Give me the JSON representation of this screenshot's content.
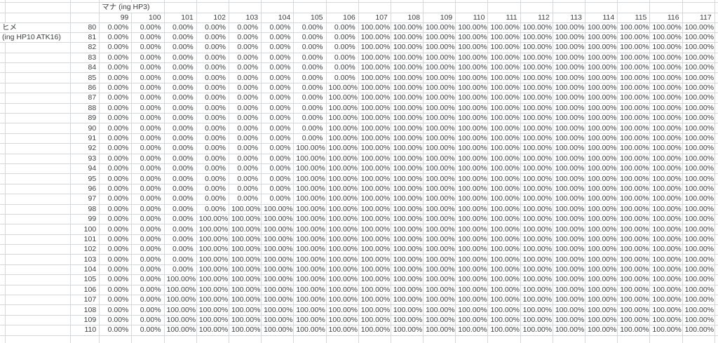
{
  "sheet": {
    "mana_header": "マナ (ing HP3)",
    "corner_label_line1": "ヒメ",
    "corner_label_line2": "(ing HP10 ATK16)",
    "col_headers": [
      "99",
      "100",
      "101",
      "102",
      "103",
      "104",
      "105",
      "106",
      "107",
      "108",
      "109",
      "110",
      "111",
      "112",
      "113",
      "114",
      "115",
      "116",
      "117"
    ],
    "colors": {
      "background": "#ffffff",
      "gridline": "#d5d8da",
      "text": "#3d3f40"
    },
    "rows": [
      {
        "label": "ヒメ",
        "row": "80",
        "values": [
          "0.00%",
          "0.00%",
          "0.00%",
          "0.00%",
          "0.00%",
          "0.00%",
          "0.00%",
          "0.00%",
          "100.00%",
          "100.00%",
          "100.00%",
          "100.00%",
          "100.00%",
          "100.00%",
          "100.00%",
          "100.00%",
          "100.00%",
          "100.00%",
          "100.00%"
        ]
      },
      {
        "label": "(ing HP10 ATK16)",
        "row": "81",
        "values": [
          "0.00%",
          "0.00%",
          "0.00%",
          "0.00%",
          "0.00%",
          "0.00%",
          "0.00%",
          "0.00%",
          "100.00%",
          "100.00%",
          "100.00%",
          "100.00%",
          "100.00%",
          "100.00%",
          "100.00%",
          "100.00%",
          "100.00%",
          "100.00%",
          "100.00%"
        ]
      },
      {
        "label": "",
        "row": "82",
        "values": [
          "0.00%",
          "0.00%",
          "0.00%",
          "0.00%",
          "0.00%",
          "0.00%",
          "0.00%",
          "0.00%",
          "100.00%",
          "100.00%",
          "100.00%",
          "100.00%",
          "100.00%",
          "100.00%",
          "100.00%",
          "100.00%",
          "100.00%",
          "100.00%",
          "100.00%"
        ]
      },
      {
        "label": "",
        "row": "83",
        "values": [
          "0.00%",
          "0.00%",
          "0.00%",
          "0.00%",
          "0.00%",
          "0.00%",
          "0.00%",
          "0.00%",
          "100.00%",
          "100.00%",
          "100.00%",
          "100.00%",
          "100.00%",
          "100.00%",
          "100.00%",
          "100.00%",
          "100.00%",
          "100.00%",
          "100.00%"
        ]
      },
      {
        "label": "",
        "row": "84",
        "values": [
          "0.00%",
          "0.00%",
          "0.00%",
          "0.00%",
          "0.00%",
          "0.00%",
          "0.00%",
          "0.00%",
          "100.00%",
          "100.00%",
          "100.00%",
          "100.00%",
          "100.00%",
          "100.00%",
          "100.00%",
          "100.00%",
          "100.00%",
          "100.00%",
          "100.00%"
        ]
      },
      {
        "label": "",
        "row": "85",
        "values": [
          "0.00%",
          "0.00%",
          "0.00%",
          "0.00%",
          "0.00%",
          "0.00%",
          "0.00%",
          "0.00%",
          "100.00%",
          "100.00%",
          "100.00%",
          "100.00%",
          "100.00%",
          "100.00%",
          "100.00%",
          "100.00%",
          "100.00%",
          "100.00%",
          "100.00%"
        ]
      },
      {
        "label": "",
        "row": "86",
        "values": [
          "0.00%",
          "0.00%",
          "0.00%",
          "0.00%",
          "0.00%",
          "0.00%",
          "0.00%",
          "100.00%",
          "100.00%",
          "100.00%",
          "100.00%",
          "100.00%",
          "100.00%",
          "100.00%",
          "100.00%",
          "100.00%",
          "100.00%",
          "100.00%",
          "100.00%"
        ]
      },
      {
        "label": "",
        "row": "87",
        "values": [
          "0.00%",
          "0.00%",
          "0.00%",
          "0.00%",
          "0.00%",
          "0.00%",
          "0.00%",
          "100.00%",
          "100.00%",
          "100.00%",
          "100.00%",
          "100.00%",
          "100.00%",
          "100.00%",
          "100.00%",
          "100.00%",
          "100.00%",
          "100.00%",
          "100.00%"
        ]
      },
      {
        "label": "",
        "row": "88",
        "values": [
          "0.00%",
          "0.00%",
          "0.00%",
          "0.00%",
          "0.00%",
          "0.00%",
          "0.00%",
          "100.00%",
          "100.00%",
          "100.00%",
          "100.00%",
          "100.00%",
          "100.00%",
          "100.00%",
          "100.00%",
          "100.00%",
          "100.00%",
          "100.00%",
          "100.00%"
        ]
      },
      {
        "label": "",
        "row": "89",
        "values": [
          "0.00%",
          "0.00%",
          "0.00%",
          "0.00%",
          "0.00%",
          "0.00%",
          "0.00%",
          "100.00%",
          "100.00%",
          "100.00%",
          "100.00%",
          "100.00%",
          "100.00%",
          "100.00%",
          "100.00%",
          "100.00%",
          "100.00%",
          "100.00%",
          "100.00%"
        ]
      },
      {
        "label": "",
        "row": "90",
        "values": [
          "0.00%",
          "0.00%",
          "0.00%",
          "0.00%",
          "0.00%",
          "0.00%",
          "0.00%",
          "100.00%",
          "100.00%",
          "100.00%",
          "100.00%",
          "100.00%",
          "100.00%",
          "100.00%",
          "100.00%",
          "100.00%",
          "100.00%",
          "100.00%",
          "100.00%"
        ]
      },
      {
        "label": "",
        "row": "91",
        "values": [
          "0.00%",
          "0.00%",
          "0.00%",
          "0.00%",
          "0.00%",
          "0.00%",
          "0.00%",
          "100.00%",
          "100.00%",
          "100.00%",
          "100.00%",
          "100.00%",
          "100.00%",
          "100.00%",
          "100.00%",
          "100.00%",
          "100.00%",
          "100.00%",
          "100.00%"
        ]
      },
      {
        "label": "",
        "row": "92",
        "values": [
          "0.00%",
          "0.00%",
          "0.00%",
          "0.00%",
          "0.00%",
          "0.00%",
          "100.00%",
          "100.00%",
          "100.00%",
          "100.00%",
          "100.00%",
          "100.00%",
          "100.00%",
          "100.00%",
          "100.00%",
          "100.00%",
          "100.00%",
          "100.00%",
          "100.00%"
        ]
      },
      {
        "label": "",
        "row": "93",
        "values": [
          "0.00%",
          "0.00%",
          "0.00%",
          "0.00%",
          "0.00%",
          "0.00%",
          "100.00%",
          "100.00%",
          "100.00%",
          "100.00%",
          "100.00%",
          "100.00%",
          "100.00%",
          "100.00%",
          "100.00%",
          "100.00%",
          "100.00%",
          "100.00%",
          "100.00%"
        ]
      },
      {
        "label": "",
        "row": "94",
        "values": [
          "0.00%",
          "0.00%",
          "0.00%",
          "0.00%",
          "0.00%",
          "0.00%",
          "100.00%",
          "100.00%",
          "100.00%",
          "100.00%",
          "100.00%",
          "100.00%",
          "100.00%",
          "100.00%",
          "100.00%",
          "100.00%",
          "100.00%",
          "100.00%",
          "100.00%"
        ]
      },
      {
        "label": "",
        "row": "95",
        "values": [
          "0.00%",
          "0.00%",
          "0.00%",
          "0.00%",
          "0.00%",
          "0.00%",
          "100.00%",
          "100.00%",
          "100.00%",
          "100.00%",
          "100.00%",
          "100.00%",
          "100.00%",
          "100.00%",
          "100.00%",
          "100.00%",
          "100.00%",
          "100.00%",
          "100.00%"
        ]
      },
      {
        "label": "",
        "row": "96",
        "values": [
          "0.00%",
          "0.00%",
          "0.00%",
          "0.00%",
          "0.00%",
          "0.00%",
          "100.00%",
          "100.00%",
          "100.00%",
          "100.00%",
          "100.00%",
          "100.00%",
          "100.00%",
          "100.00%",
          "100.00%",
          "100.00%",
          "100.00%",
          "100.00%",
          "100.00%"
        ]
      },
      {
        "label": "",
        "row": "97",
        "values": [
          "0.00%",
          "0.00%",
          "0.00%",
          "0.00%",
          "0.00%",
          "0.00%",
          "100.00%",
          "100.00%",
          "100.00%",
          "100.00%",
          "100.00%",
          "100.00%",
          "100.00%",
          "100.00%",
          "100.00%",
          "100.00%",
          "100.00%",
          "100.00%",
          "100.00%"
        ]
      },
      {
        "label": "",
        "row": "98",
        "values": [
          "0.00%",
          "0.00%",
          "0.00%",
          "0.00%",
          "100.00%",
          "100.00%",
          "100.00%",
          "100.00%",
          "100.00%",
          "100.00%",
          "100.00%",
          "100.00%",
          "100.00%",
          "100.00%",
          "100.00%",
          "100.00%",
          "100.00%",
          "100.00%",
          "100.00%"
        ]
      },
      {
        "label": "",
        "row": "99",
        "values": [
          "0.00%",
          "0.00%",
          "0.00%",
          "100.00%",
          "100.00%",
          "100.00%",
          "100.00%",
          "100.00%",
          "100.00%",
          "100.00%",
          "100.00%",
          "100.00%",
          "100.00%",
          "100.00%",
          "100.00%",
          "100.00%",
          "100.00%",
          "100.00%",
          "100.00%"
        ]
      },
      {
        "label": "",
        "row": "100",
        "values": [
          "0.00%",
          "0.00%",
          "0.00%",
          "100.00%",
          "100.00%",
          "100.00%",
          "100.00%",
          "100.00%",
          "100.00%",
          "100.00%",
          "100.00%",
          "100.00%",
          "100.00%",
          "100.00%",
          "100.00%",
          "100.00%",
          "100.00%",
          "100.00%",
          "100.00%"
        ]
      },
      {
        "label": "",
        "row": "101",
        "values": [
          "0.00%",
          "0.00%",
          "0.00%",
          "100.00%",
          "100.00%",
          "100.00%",
          "100.00%",
          "100.00%",
          "100.00%",
          "100.00%",
          "100.00%",
          "100.00%",
          "100.00%",
          "100.00%",
          "100.00%",
          "100.00%",
          "100.00%",
          "100.00%",
          "100.00%"
        ]
      },
      {
        "label": "",
        "row": "102",
        "values": [
          "0.00%",
          "0.00%",
          "0.00%",
          "100.00%",
          "100.00%",
          "100.00%",
          "100.00%",
          "100.00%",
          "100.00%",
          "100.00%",
          "100.00%",
          "100.00%",
          "100.00%",
          "100.00%",
          "100.00%",
          "100.00%",
          "100.00%",
          "100.00%",
          "100.00%"
        ]
      },
      {
        "label": "",
        "row": "103",
        "values": [
          "0.00%",
          "0.00%",
          "0.00%",
          "100.00%",
          "100.00%",
          "100.00%",
          "100.00%",
          "100.00%",
          "100.00%",
          "100.00%",
          "100.00%",
          "100.00%",
          "100.00%",
          "100.00%",
          "100.00%",
          "100.00%",
          "100.00%",
          "100.00%",
          "100.00%"
        ]
      },
      {
        "label": "",
        "row": "104",
        "values": [
          "0.00%",
          "0.00%",
          "0.00%",
          "100.00%",
          "100.00%",
          "100.00%",
          "100.00%",
          "100.00%",
          "100.00%",
          "100.00%",
          "100.00%",
          "100.00%",
          "100.00%",
          "100.00%",
          "100.00%",
          "100.00%",
          "100.00%",
          "100.00%",
          "100.00%"
        ]
      },
      {
        "label": "",
        "row": "105",
        "values": [
          "0.00%",
          "0.00%",
          "100.00%",
          "100.00%",
          "100.00%",
          "100.00%",
          "100.00%",
          "100.00%",
          "100.00%",
          "100.00%",
          "100.00%",
          "100.00%",
          "100.00%",
          "100.00%",
          "100.00%",
          "100.00%",
          "100.00%",
          "100.00%",
          "100.00%"
        ]
      },
      {
        "label": "",
        "row": "106",
        "values": [
          "0.00%",
          "0.00%",
          "100.00%",
          "100.00%",
          "100.00%",
          "100.00%",
          "100.00%",
          "100.00%",
          "100.00%",
          "100.00%",
          "100.00%",
          "100.00%",
          "100.00%",
          "100.00%",
          "100.00%",
          "100.00%",
          "100.00%",
          "100.00%",
          "100.00%"
        ]
      },
      {
        "label": "",
        "row": "107",
        "values": [
          "0.00%",
          "0.00%",
          "100.00%",
          "100.00%",
          "100.00%",
          "100.00%",
          "100.00%",
          "100.00%",
          "100.00%",
          "100.00%",
          "100.00%",
          "100.00%",
          "100.00%",
          "100.00%",
          "100.00%",
          "100.00%",
          "100.00%",
          "100.00%",
          "100.00%"
        ]
      },
      {
        "label": "",
        "row": "108",
        "values": [
          "0.00%",
          "0.00%",
          "100.00%",
          "100.00%",
          "100.00%",
          "100.00%",
          "100.00%",
          "100.00%",
          "100.00%",
          "100.00%",
          "100.00%",
          "100.00%",
          "100.00%",
          "100.00%",
          "100.00%",
          "100.00%",
          "100.00%",
          "100.00%",
          "100.00%"
        ]
      },
      {
        "label": "",
        "row": "109",
        "values": [
          "0.00%",
          "0.00%",
          "100.00%",
          "100.00%",
          "100.00%",
          "100.00%",
          "100.00%",
          "100.00%",
          "100.00%",
          "100.00%",
          "100.00%",
          "100.00%",
          "100.00%",
          "100.00%",
          "100.00%",
          "100.00%",
          "100.00%",
          "100.00%",
          "100.00%"
        ]
      },
      {
        "label": "",
        "row": "110",
        "values": [
          "0.00%",
          "0.00%",
          "100.00%",
          "100.00%",
          "100.00%",
          "100.00%",
          "100.00%",
          "100.00%",
          "100.00%",
          "100.00%",
          "100.00%",
          "100.00%",
          "100.00%",
          "100.00%",
          "100.00%",
          "100.00%",
          "100.00%",
          "100.00%",
          "100.00%"
        ]
      }
    ]
  }
}
